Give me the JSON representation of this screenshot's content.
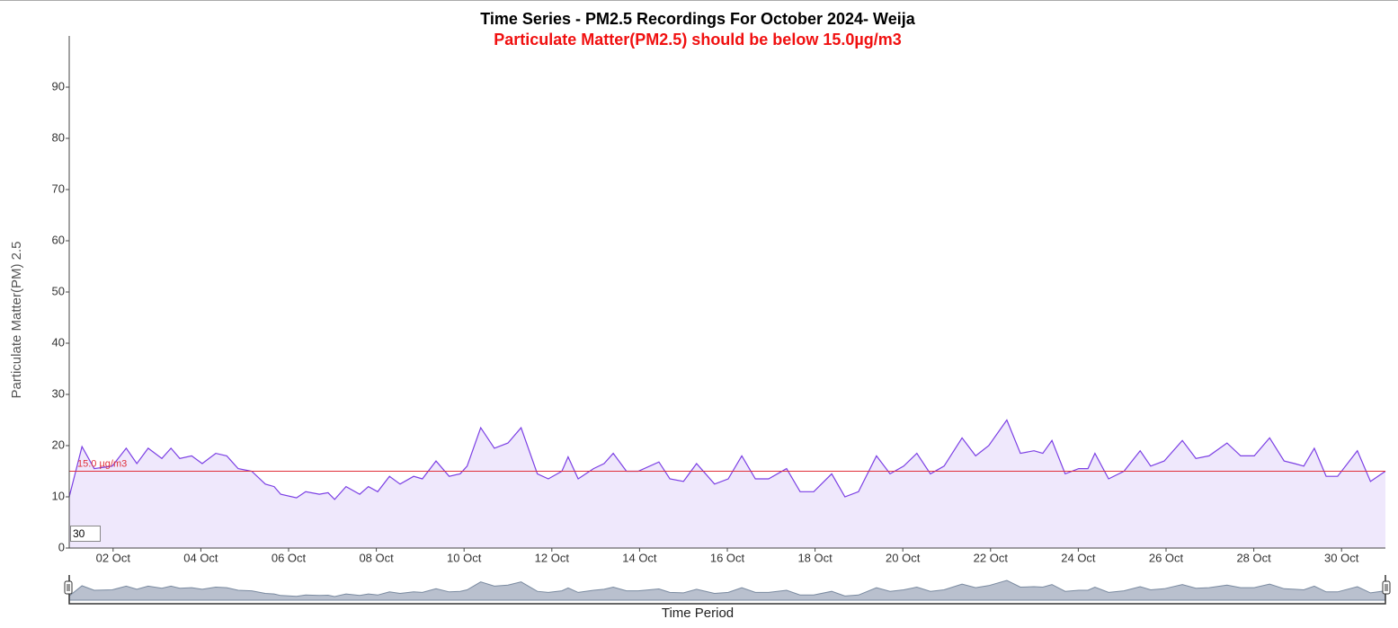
{
  "chart_data": {
    "type": "line",
    "title": "Time Series - PM2.5 Recordings For October 2024- Weija",
    "subtitle": "Particulate Matter(PM2.5) should be below 15.0µg/m3",
    "x_label": "Time Period",
    "y_label": "Particulate Matter(PM) 2.5",
    "roll_period": 30,
    "threshold": {
      "value": 15,
      "label": "15.0 µg/m3",
      "color": "#e0303a"
    },
    "x": [
      1.0,
      1.29,
      1.57,
      1.98,
      2.3,
      2.54,
      2.8,
      3.11,
      3.32,
      3.52,
      3.79,
      4.03,
      4.34,
      4.59,
      4.85,
      5.16,
      5.47,
      5.67,
      5.82,
      6.18,
      6.39,
      6.7,
      6.9,
      7.05,
      7.31,
      7.62,
      7.82,
      8.03,
      8.3,
      8.54,
      8.85,
      9.05,
      9.36,
      9.66,
      9.91,
      10.07,
      10.38,
      10.69,
      11.0,
      11.3,
      11.67,
      11.92,
      12.23,
      12.37,
      12.6,
      12.95,
      13.19,
      13.4,
      13.7,
      13.97,
      14.44,
      14.69,
      15.0,
      15.3,
      15.71,
      16.02,
      16.33,
      16.64,
      16.94,
      17.35,
      17.66,
      17.97,
      18.38,
      18.68,
      18.99,
      19.4,
      19.71,
      20.02,
      20.32,
      20.63,
      20.94,
      21.35,
      21.66,
      21.96,
      22.37,
      22.68,
      22.99,
      23.19,
      23.4,
      23.7,
      24.01,
      24.22,
      24.38,
      24.69,
      25.04,
      25.41,
      25.65,
      25.96,
      26.37,
      26.68,
      26.98,
      27.39,
      27.7,
      28.01,
      28.36,
      28.69,
      28.93,
      29.14,
      29.38,
      29.65,
      29.91,
      30.36,
      30.66,
      31.0
    ],
    "series": [
      {
        "name": "PM2.5",
        "color": "#7b3fe4",
        "fill": "#efe8fc",
        "values": [
          10,
          19.8,
          15.5,
          16,
          19.5,
          16.5,
          19.5,
          17.5,
          19.5,
          17.5,
          18,
          16.5,
          18.5,
          18,
          15.5,
          15,
          12.5,
          12,
          10.5,
          9.8,
          11,
          10.5,
          10.8,
          9.5,
          12,
          10.5,
          12,
          11,
          14,
          12.5,
          14,
          13.5,
          17,
          14,
          14.5,
          16,
          23.5,
          19.5,
          20.5,
          23.5,
          14.5,
          13.5,
          15,
          17.8,
          13.5,
          15.5,
          16.5,
          18.5,
          15,
          15,
          16.8,
          13.5,
          13,
          16.5,
          12.5,
          13.5,
          18,
          13.5,
          13.5,
          15.5,
          11,
          11,
          14.5,
          10,
          11,
          18,
          14.5,
          16,
          18.5,
          14.5,
          16,
          21.5,
          18,
          20,
          25,
          18.5,
          19,
          18.5,
          21,
          14.5,
          15.5,
          15.5,
          18.5,
          13.5,
          15,
          19,
          16,
          17,
          21,
          17.5,
          18,
          20.5,
          18,
          18,
          21.5,
          17,
          16.5,
          16,
          19.5,
          14,
          14,
          19,
          13,
          15
        ]
      }
    ],
    "xlim": [
      1,
      31
    ],
    "ylim": [
      0,
      100
    ],
    "xticks": [
      {
        "value": 2,
        "label": "02 Oct"
      },
      {
        "value": 4,
        "label": "04 Oct"
      },
      {
        "value": 6,
        "label": "06 Oct"
      },
      {
        "value": 8,
        "label": "08 Oct"
      },
      {
        "value": 10,
        "label": "10 Oct"
      },
      {
        "value": 12,
        "label": "12 Oct"
      },
      {
        "value": 14,
        "label": "14 Oct"
      },
      {
        "value": 16,
        "label": "16 Oct"
      },
      {
        "value": 18,
        "label": "18 Oct"
      },
      {
        "value": 20,
        "label": "20 Oct"
      },
      {
        "value": 22,
        "label": "22 Oct"
      },
      {
        "value": 24,
        "label": "24 Oct"
      },
      {
        "value": 26,
        "label": "26 Oct"
      },
      {
        "value": 28,
        "label": "28 Oct"
      },
      {
        "value": 30,
        "label": "30 Oct"
      }
    ],
    "yticks": [
      0,
      10,
      20,
      30,
      40,
      50,
      60,
      70,
      80,
      90
    ],
    "grid": false
  }
}
